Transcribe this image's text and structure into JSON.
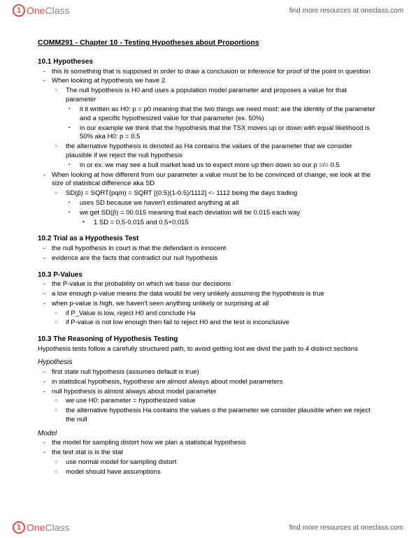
{
  "brand": {
    "one": "One",
    "class": "Class",
    "link": "find more resources at oneclass.com"
  },
  "title": "COMM291 - Chapter 10 - Testing Hypotheses about Proportions",
  "s1": {
    "head": "10.1 Hypotheses",
    "b1": "this is something that is supposed in order to draw a conclusion or inference for proof of the point in question",
    "b2": "When looking at hypothesis we have 2",
    "b2a": "The null hypothesis is H0 and uses a population model parameter and proposes a value for that parameter",
    "b2a1": "it it written as H0: p = p0 meaning that the two things we need most: are the identity of the parameter and a specific hypothesized value for that parameter (ex. 50%)",
    "b2a2": "in our example we think that the hypothesis that the TSX moves up or down with equal likelihood is 50% aka H0: p = 0.5",
    "b2b": "the alternative hypothesis is denoted as Ha contains the values of the parameter that we consider plausible if we reject the null hypothesis",
    "b2b1": "in or ex. we may see a bull market lead us to expect more up then down so our p =/= 0.5",
    "b3": "When looking at how different from our parameter a value must be to be convinced of change, we look at the size of statistical difference aka SD",
    "b3a": "SD(p̂) = SQRT(pq/n) = SQRT [(0.5)(1-0.5)/1112] <- 1112 being the days trading",
    "b3a1": "uses SD because we haven't estimated anything at all",
    "b3a2": "we get SD(p̂) = 00.015 meaning that each deviation will be 0.015 each way",
    "b3a2a": "1 SD = 0.5-0.015 and 0.5+0.015"
  },
  "s2": {
    "head": "10.2 Trial as a Hypothesis Test",
    "b1": "the null hypothesis in court is that the defendant is innocent",
    "b2": "evidence are the facts that contradict our null hypothesis"
  },
  "s3": {
    "head": "10.3 P-Values",
    "b1": "the P-value is the probability on which we base our decisions",
    "b2": "a low enough p-value means the data would be very unlikely assuming the hypothesis is true",
    "b3": "when p-value is high, we haven't seen anything unlikely or surprising at all",
    "b3a": "if P_Value is low, reject H0 and conclude Ha",
    "b3b": "if P-value is not low enough then fail to reject H0 and the test is inconclusive"
  },
  "s4": {
    "head": "10.3 The Reasoning of Hypothesis Testing",
    "intro": "Hypothesis tests follow a carefully structured path, to avoid getting lost we divid the path to 4 distinct sections",
    "hyp_head": "Hypothesis",
    "h1": "first state null hypothesis (assumes default is true)",
    "h2": "in statistical hypothesis, hypothese are almost always about model parameters",
    "h3": "null hypothesis is almost always about model parameter",
    "h3a": "we use H0: parameter = hypothesized value",
    "h3b": "the alternative hypothesis Ha contains the values o the parameter we consider plausible when we reject the null",
    "mod_head": "Model",
    "m1": "the model for sampling distort how we plan a statistical hypothesis",
    "m2": "the test stat is is the stat",
    "m2a": "use normal model for sampling distort",
    "m2b": "model should have assumptions"
  }
}
